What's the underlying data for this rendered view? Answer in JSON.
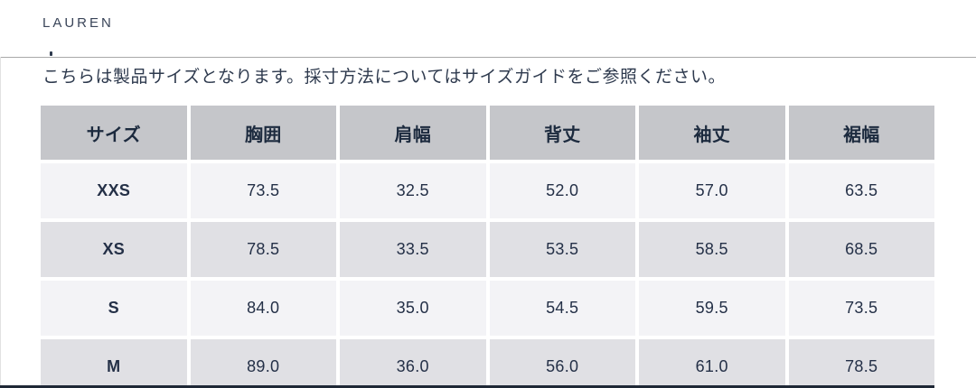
{
  "header": {
    "brand": "LAUREN"
  },
  "note": "こちらは製品サイズとなります。採寸方法についてはサイズガイドをご参照ください。",
  "table": {
    "headers": [
      "サイズ",
      "胸囲",
      "肩幅",
      "背丈",
      "袖丈",
      "裾幅"
    ],
    "rows": [
      {
        "size": "XXS",
        "values": [
          "73.5",
          "32.5",
          "52.0",
          "57.0",
          "63.5"
        ]
      },
      {
        "size": "XS",
        "values": [
          "78.5",
          "33.5",
          "53.5",
          "58.5",
          "68.5"
        ]
      },
      {
        "size": "S",
        "values": [
          "84.0",
          "35.0",
          "54.5",
          "59.5",
          "73.5"
        ]
      },
      {
        "size": "M",
        "values": [
          "89.0",
          "36.0",
          "56.0",
          "61.0",
          "78.5"
        ]
      }
    ]
  },
  "colors": {
    "text": "#243047",
    "brand": "#3a4559",
    "header_bg": "#c5c6ca",
    "row_light": "#f3f3f6",
    "row_dark": "#e0e0e4",
    "divider": "#a8a8a8",
    "bottom_bar": "#1f2836"
  }
}
